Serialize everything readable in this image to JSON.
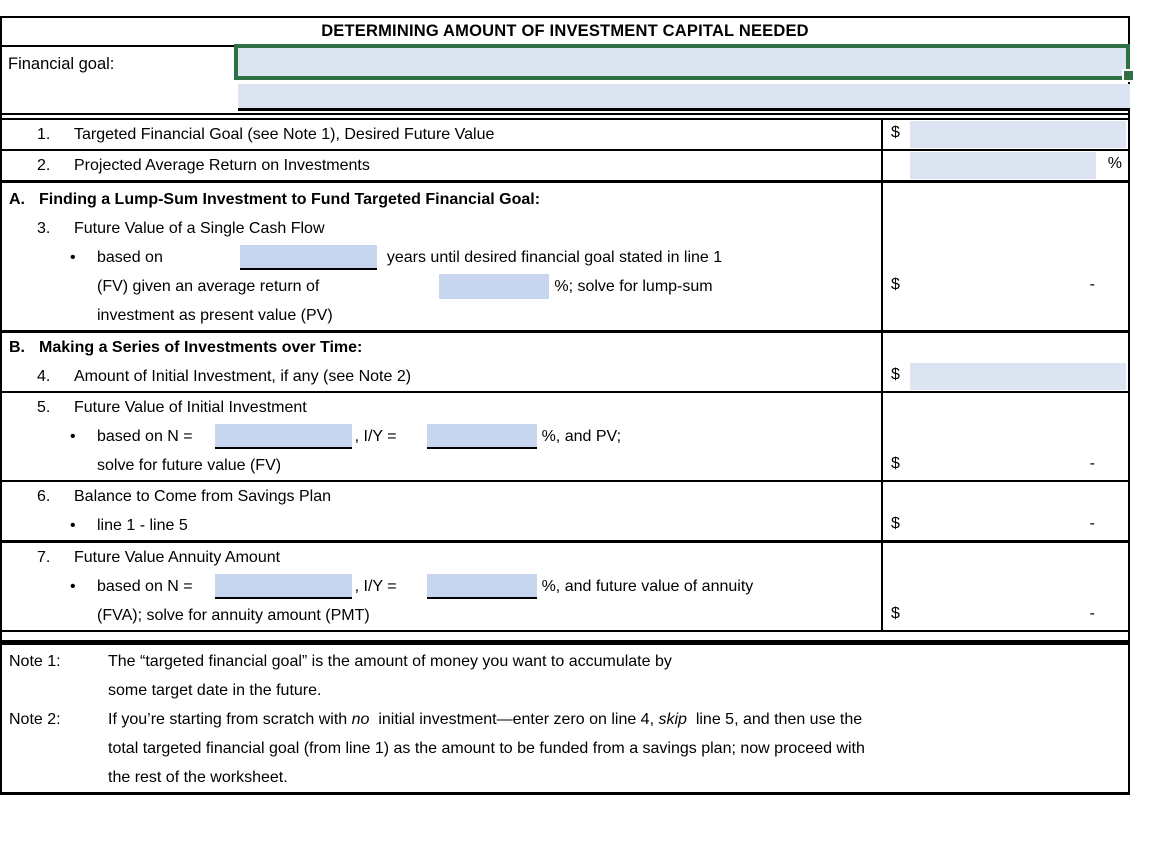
{
  "colors": {
    "cell_fill": "#dce3f1",
    "blank_fill": "#c7d6ee",
    "selection_border_green": "#2f7045",
    "grid_border": "#000000"
  },
  "title": "DETERMINING AMOUNT OF INVESTMENT CAPITAL NEEDED",
  "financial_goal": {
    "label": "Financial goal:",
    "selected_cell_value": "",
    "second_cell_value": ""
  },
  "line1": {
    "num": "1.",
    "label": "Targeted Financial Goal (see Note 1), Desired Future Value",
    "currency": "$",
    "value": ""
  },
  "line2": {
    "num": "2.",
    "label": "Projected Average Return on Investments",
    "value": "",
    "percent": "%"
  },
  "sectionA": {
    "letter": "A.",
    "heading": "Finding a Lump-Sum Investment to Fund Targeted Financial Goal:"
  },
  "line3": {
    "num": "3.",
    "label": "Future Value of a Single Cash Flow",
    "bullet": "•",
    "based_on_pre": "based on",
    "years_value": "",
    "based_on_post": "years until desired financial goal stated in line 1",
    "return_pre": "(FV) given an average return of",
    "return_value": "",
    "return_post": "%; solve for lump-sum",
    "tail": "investment as present value (PV)",
    "currency": "$",
    "value": "-"
  },
  "sectionB": {
    "letter": "B.",
    "heading": "Making a Series of Investments over Time:"
  },
  "line4": {
    "num": "4.",
    "label": "Amount of Initial Investment, if any (see Note 2)",
    "currency": "$",
    "value": ""
  },
  "line5": {
    "num": "5.",
    "label": "Future Value of Initial Investment",
    "bullet": "•",
    "n_pre": "based on N =",
    "n_value": "",
    "iy_pre": ", I/Y =",
    "iy_value": "",
    "post": "%, and PV;",
    "tail": "solve for future value (FV)",
    "currency": "$",
    "value": "-"
  },
  "line6": {
    "num": "6.",
    "label": "Balance to Come from Savings Plan",
    "bullet": "•",
    "formula": "line 1 - line 5",
    "currency": "$",
    "value": "-"
  },
  "line7": {
    "num": "7.",
    "label": "Future Value Annuity Amount",
    "bullet": "•",
    "n_pre": "based on N =",
    "n_value": "",
    "iy_pre": ", I/Y =",
    "iy_value": "",
    "post": "%, and future value of annuity",
    "tail": "(FVA); solve for annuity amount (PMT)",
    "currency": "$",
    "value": "-"
  },
  "notes": {
    "note1": {
      "label": "Note 1:",
      "lines": [
        "The “targeted financial goal” is the amount of money you want to accumulate by",
        "some target date in the future."
      ]
    },
    "note2": {
      "label": "Note 2:",
      "line1_segments": [
        {
          "t": "If you’re starting from scratch with "
        },
        {
          "t": "no",
          "i": true
        },
        {
          "t": "  initial investment—enter zero on line 4, "
        },
        {
          "t": "skip",
          "i": true
        },
        {
          "t": "  line 5, and then use the"
        }
      ],
      "lines": [
        "total targeted financial goal (from line 1) as the amount to be funded from a savings plan; now proceed with",
        "the rest of the worksheet."
      ]
    }
  }
}
